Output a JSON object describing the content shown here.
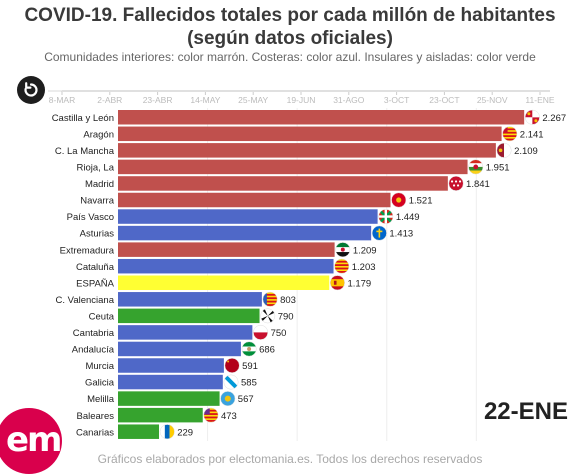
{
  "header": {
    "title": "COVID-19. Fallecidos totales por cada millón de habitantes (según datos oficiales)",
    "subtitle": "Comunidades interiores: color marrón. Costeras: color azul. Insulares y aisladas: color verde"
  },
  "replay_icon": "replay-icon",
  "current_date": "22-ENE",
  "logo_text": "em",
  "footer": "Gráficos elaborados por electomania.es. Todos los derechos reservados",
  "colors": {
    "interior": "#c0504d",
    "coastal": "#4f68c8",
    "island": "#36a32e",
    "national": "#ffff33",
    "axis_text": "#bbbbbb"
  },
  "chart_data": {
    "type": "bar",
    "orientation": "horizontal",
    "title": "COVID-19. Fallecidos totales por cada millón de habitantes (según datos oficiales)",
    "timeline_ticks": [
      "8-MAR",
      "2-ABR",
      "23-ABR",
      "14-MAY",
      "25-MAY",
      "19-JUN",
      "31-AGO",
      "3-OCT",
      "23-OCT",
      "25-NOV",
      "11-ENE"
    ],
    "xlim": [
      0,
      2400
    ],
    "grid": true,
    "categories": [
      "Castilla y León",
      "Aragón",
      "C. La Mancha",
      "Rioja, La",
      "Madrid",
      "Navarra",
      "País Vasco",
      "Asturias",
      "Extremadura",
      "Cataluña",
      "ESPAÑA",
      "C. Valenciana",
      "Ceuta",
      "Cantabria",
      "Andalucía",
      "Murcia",
      "Galicia",
      "Melilla",
      "Baleares",
      "Canarias"
    ],
    "values": [
      2267,
      2141,
      2109,
      1951,
      1841,
      1521,
      1449,
      1413,
      1209,
      1203,
      1179,
      803,
      790,
      750,
      686,
      591,
      585,
      567,
      473,
      229
    ],
    "value_labels": [
      "2.267",
      "2.141",
      "2.109",
      "1.951",
      "1.841",
      "1.521",
      "1.449",
      "1.413",
      "1.209",
      "1.203",
      "1.179",
      "803",
      "790",
      "750",
      "686",
      "591",
      "585",
      "567",
      "473",
      "229"
    ],
    "groups": [
      "interior",
      "interior",
      "interior",
      "interior",
      "interior",
      "interior",
      "coastal",
      "coastal",
      "interior",
      "coastal",
      "national",
      "coastal",
      "island",
      "coastal",
      "coastal",
      "coastal",
      "coastal",
      "island",
      "island",
      "island"
    ],
    "flag_icons": [
      "castilla-leon-flag-icon",
      "aragon-flag-icon",
      "castilla-la-mancha-flag-icon",
      "la-rioja-flag-icon",
      "madrid-flag-icon",
      "navarra-flag-icon",
      "pais-vasco-flag-icon",
      "asturias-flag-icon",
      "extremadura-flag-icon",
      "cataluna-flag-icon",
      "espana-flag-icon",
      "comunidad-valenciana-flag-icon",
      "ceuta-flag-icon",
      "cantabria-flag-icon",
      "andalucia-flag-icon",
      "murcia-flag-icon",
      "galicia-flag-icon",
      "melilla-flag-icon",
      "baleares-flag-icon",
      "canarias-flag-icon"
    ]
  }
}
